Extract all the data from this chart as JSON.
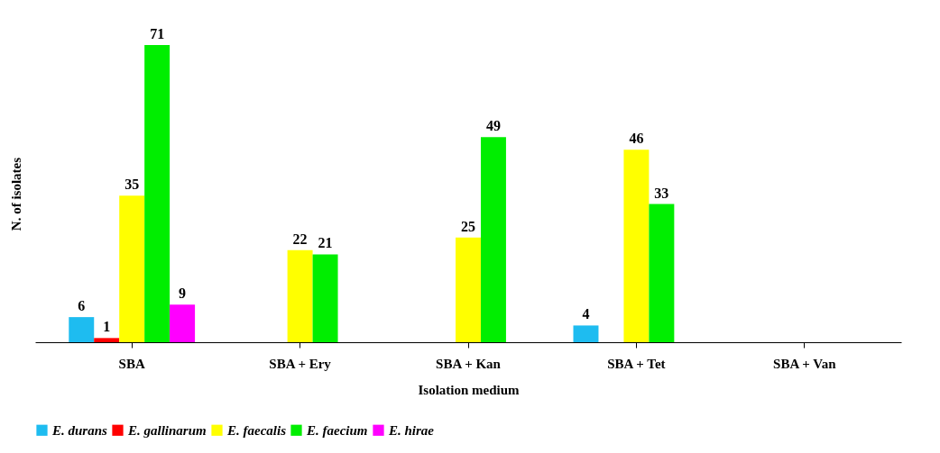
{
  "chart_data": {
    "type": "bar",
    "xlabel": "Isolation medium",
    "ylabel": "N. of isolates",
    "categories": [
      "SBA",
      "SBA + Ery",
      "SBA + Kan",
      "SBA + Tet",
      "SBA + Van"
    ],
    "series": [
      {
        "name": "E. durans",
        "color": "#1ebcf0",
        "values": [
          6,
          null,
          null,
          4,
          null
        ]
      },
      {
        "name": "E. gallinarum",
        "color": "#ff0000",
        "values": [
          1,
          null,
          null,
          null,
          null
        ]
      },
      {
        "name": "E. faecalis",
        "color": "#ffff00",
        "values": [
          35,
          22,
          25,
          46,
          null
        ]
      },
      {
        "name": "E. faecium",
        "color": "#00ee00",
        "values": [
          71,
          21,
          49,
          33,
          null
        ]
      },
      {
        "name": "E. hirae",
        "color": "#ff00ff",
        "values": [
          9,
          null,
          null,
          null,
          null
        ]
      }
    ],
    "data_labels": true,
    "legend": "bottom",
    "grid": false,
    "tick_labels": "x"
  }
}
